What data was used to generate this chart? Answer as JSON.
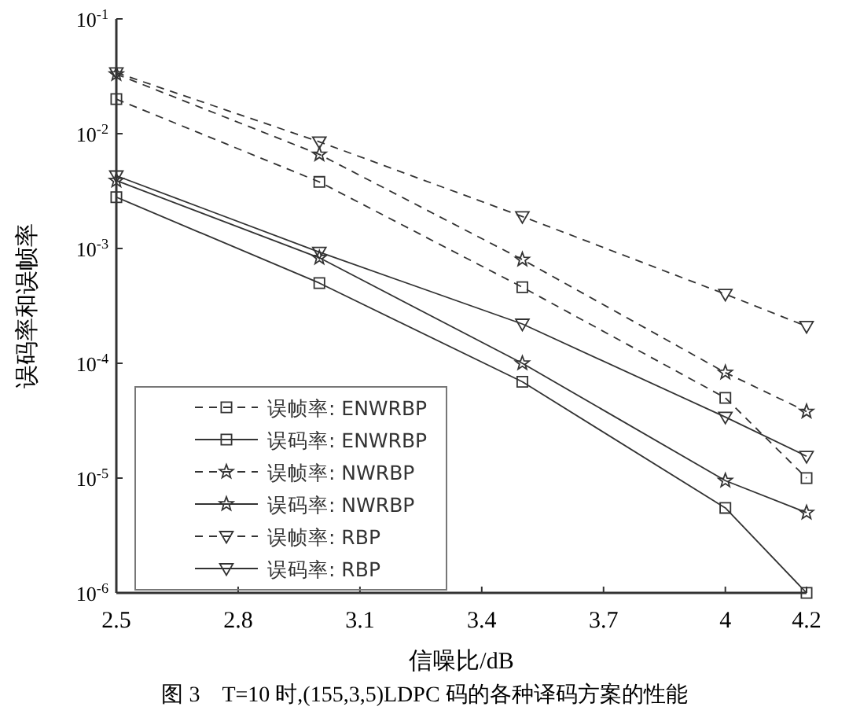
{
  "chart_data": {
    "type": "line",
    "xlabel": "信噪比/dB",
    "ylabel": "误码率和误帧率",
    "annotations": [
      "图 3　T=10 时,(155,3,5)LDPC 码的各种译码方案的性能"
    ],
    "x": [
      2.5,
      3.0,
      3.5,
      4.0,
      4.2
    ],
    "log": "y",
    "xlim": [
      2.5,
      4.2
    ],
    "xticks": [
      2.5,
      2.8,
      3.1,
      3.4,
      3.7,
      4,
      4.2
    ],
    "ylim": [
      1e-06,
      0.1
    ],
    "yticks": [
      {
        "value": 0.1,
        "label": "10$^{-1}$"
      },
      {
        "value": 0.01,
        "label": "10$^{-2}$"
      },
      {
        "value": 0.001,
        "label": "10$^{-3}$"
      },
      {
        "value": 0.0001,
        "label": "10$^{-4}$"
      },
      {
        "value": 1e-05,
        "label": "10$^{-5}$"
      },
      {
        "value": 1e-06,
        "label": "10$^{-6}$"
      }
    ],
    "legend": "bottom left",
    "grid": false,
    "series": [
      {
        "name": "误帧率: ENWRBP",
        "color": "#333333",
        "marker": "square",
        "line_style": "dashed",
        "values": [
          0.02,
          0.0038,
          0.00046,
          5e-05,
          1e-05
        ]
      },
      {
        "name": "误码率: ENWRBP",
        "color": "#333333",
        "marker": "square",
        "line_style": "solid",
        "values": [
          0.0028,
          0.0005,
          6.9e-05,
          5.5e-06,
          1e-06
        ]
      },
      {
        "name": "误帧率: NWRBP",
        "color": "#333333",
        "marker": "star",
        "line_style": "dashed",
        "values": [
          0.033,
          0.0066,
          0.0008,
          8.3e-05,
          3.8e-05
        ]
      },
      {
        "name": "误码率: NWRBP",
        "color": "#333333",
        "marker": "star",
        "line_style": "solid",
        "values": [
          0.0039,
          0.00083,
          0.0001,
          9.5e-06,
          5e-06
        ]
      },
      {
        "name": "误帧率: RBP",
        "color": "#333333",
        "marker": "triangle",
        "line_style": "dashed",
        "values": [
          0.034,
          0.0085,
          0.0019,
          0.0004,
          0.00021
        ]
      },
      {
        "name": "误码率: RBP",
        "color": "#333333",
        "marker": "triangle",
        "line_style": "solid",
        "values": [
          0.0043,
          0.00093,
          0.00022,
          3.4e-05,
          1.55e-05
        ]
      }
    ]
  }
}
